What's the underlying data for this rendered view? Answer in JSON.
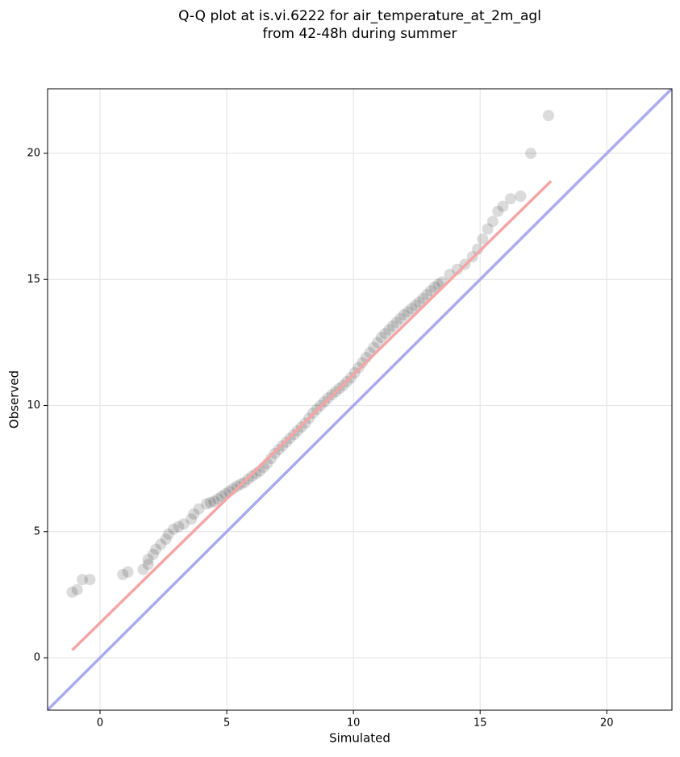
{
  "chart_data": {
    "type": "scatter",
    "title": [
      "Q-Q plot at is.vi.6222 for air_temperature_at_2m_agl",
      "from 42-48h during summer"
    ],
    "x_label": "Simulated",
    "y_label": "Observed",
    "xlim": [
      -2.07,
      22.57
    ],
    "ylim": [
      -2.08,
      22.56
    ],
    "xticks": [
      0,
      5,
      10,
      15,
      20
    ],
    "yticks": [
      0,
      5,
      10,
      15,
      20
    ],
    "grid": true,
    "lines": [
      {
        "color": "#aaaaee",
        "x": [
          -2.07,
          22.57
        ],
        "y": [
          -2.07,
          22.57
        ]
      },
      {
        "color": "#f4a6a6",
        "x": [
          -1.1,
          17.8
        ],
        "y": [
          0.3,
          18.9
        ]
      }
    ],
    "series": [
      {
        "color": "#000000",
        "x": [
          -1.1,
          -0.9,
          -0.7,
          -0.4,
          0.9,
          1.1,
          1.7,
          1.9,
          1.9,
          2.1,
          2.2,
          2.4,
          2.6,
          2.7,
          2.9,
          3.1,
          3.3,
          3.6,
          3.7,
          3.9,
          4.2,
          4.35,
          4.5,
          4.65,
          4.8,
          4.95,
          5.1,
          5.25,
          5.4,
          5.55,
          5.7,
          5.85,
          6.0,
          6.15,
          6.3,
          6.45,
          6.6,
          6.75,
          6.9,
          7.05,
          7.2,
          7.35,
          7.5,
          7.65,
          7.8,
          7.95,
          8.1,
          8.25,
          8.4,
          8.55,
          8.7,
          8.85,
          9.0,
          9.15,
          9.3,
          9.45,
          9.6,
          9.75,
          9.9,
          10.05,
          10.2,
          10.35,
          10.5,
          10.65,
          10.8,
          10.95,
          11.1,
          11.25,
          11.4,
          11.55,
          11.7,
          11.85,
          12.0,
          12.15,
          12.3,
          12.45,
          12.6,
          12.75,
          12.9,
          13.05,
          13.2,
          13.35,
          13.5,
          13.8,
          14.1,
          14.4,
          14.7,
          14.9,
          15.1,
          15.3,
          15.5,
          15.7,
          15.9,
          16.2,
          16.6,
          17.0,
          17.7
        ],
        "y": [
          2.6,
          2.7,
          3.1,
          3.1,
          3.3,
          3.4,
          3.5,
          3.7,
          3.9,
          4.1,
          4.3,
          4.5,
          4.7,
          4.9,
          5.1,
          5.2,
          5.3,
          5.5,
          5.7,
          5.9,
          6.1,
          6.15,
          6.2,
          6.3,
          6.4,
          6.5,
          6.6,
          6.7,
          6.8,
          6.88,
          6.95,
          7.08,
          7.2,
          7.3,
          7.4,
          7.55,
          7.7,
          7.9,
          8.1,
          8.25,
          8.4,
          8.55,
          8.7,
          8.85,
          9.0,
          9.15,
          9.3,
          9.5,
          9.7,
          9.85,
          10.0,
          10.15,
          10.3,
          10.43,
          10.55,
          10.68,
          10.8,
          10.95,
          11.1,
          11.3,
          11.5,
          11.7,
          11.9,
          12.1,
          12.3,
          12.5,
          12.7,
          12.85,
          13.0,
          13.15,
          13.3,
          13.45,
          13.6,
          13.72,
          13.85,
          13.98,
          14.1,
          14.25,
          14.4,
          14.55,
          14.7,
          14.8,
          14.9,
          15.2,
          15.4,
          15.6,
          15.9,
          16.2,
          16.6,
          17.0,
          17.3,
          17.7,
          17.9,
          18.2,
          18.3,
          20.0,
          21.5
        ]
      }
    ]
  }
}
